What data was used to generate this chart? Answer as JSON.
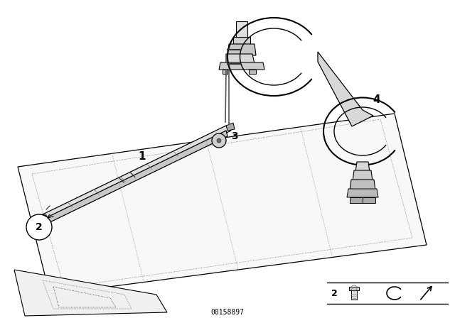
{
  "background_color": "#ffffff",
  "line_color": "#000000",
  "footer_text": "00158897",
  "fig_width": 6.4,
  "fig_height": 4.48,
  "dpi": 100
}
